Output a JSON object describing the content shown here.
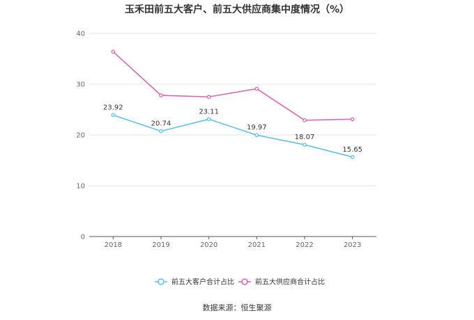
{
  "chart_data": {
    "type": "line",
    "title": "玉禾田前五大客户、前五大供应商集中度情况（%）",
    "categories": [
      "2018",
      "2019",
      "2020",
      "2021",
      "2022",
      "2023"
    ],
    "yticks": [
      "0",
      "10",
      "20",
      "30",
      "40"
    ],
    "ylim": [
      0,
      40
    ],
    "grid": true,
    "legend_position": "bottom",
    "series": [
      {
        "name": "前五大客户合计占比",
        "color": "#5bc0eb",
        "values": [
          23.92,
          20.74,
          23.11,
          19.97,
          18.07,
          15.65
        ],
        "labels": [
          "23.92",
          "20.74",
          "23.11",
          "19.97",
          "18.07",
          "15.65"
        ]
      },
      {
        "name": "前五大供应商合计占比",
        "color": "#d966b3",
        "values": [
          36.4,
          27.8,
          27.5,
          29.1,
          22.9,
          23.1
        ]
      }
    ]
  },
  "source": "数据来源：恒生聚源"
}
